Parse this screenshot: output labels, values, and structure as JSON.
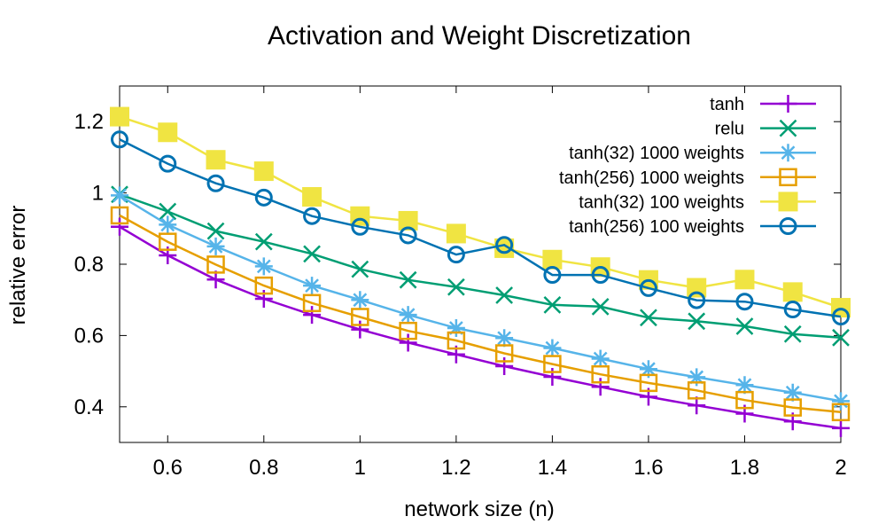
{
  "chart_data": {
    "type": "line",
    "title": "Activation and Weight Discretization",
    "xlabel": "network size (n)",
    "ylabel": "relative error",
    "xlim": [
      0.5,
      2.0
    ],
    "ylim": [
      0.3,
      1.3
    ],
    "xticks": [
      0.6,
      0.8,
      1,
      1.2,
      1.4,
      1.6,
      1.8,
      2
    ],
    "xtick_labels": [
      "0.6",
      "0.8",
      "1",
      "1.2",
      "1.4",
      "1.6",
      "1.8",
      "2"
    ],
    "yticks": [
      0.4,
      0.6,
      0.8,
      1,
      1.2
    ],
    "ytick_labels": [
      "0.4",
      "0.6",
      "0.8",
      "1",
      "1.2"
    ],
    "grid": false,
    "legend_position": "top-right",
    "x": [
      0.5,
      0.6,
      0.7,
      0.8,
      0.9,
      1.0,
      1.1,
      1.2,
      1.3,
      1.4,
      1.5,
      1.6,
      1.7,
      1.8,
      1.9,
      2.0
    ],
    "series": [
      {
        "name": "tanh",
        "color": "#9400d3",
        "marker": "plus",
        "values": [
          0.905,
          0.825,
          0.757,
          0.703,
          0.658,
          0.617,
          0.58,
          0.547,
          0.514,
          0.484,
          0.456,
          0.428,
          0.404,
          0.381,
          0.359,
          0.34
        ]
      },
      {
        "name": "relu",
        "color": "#009e73",
        "marker": "cross",
        "values": [
          0.996,
          0.948,
          0.893,
          0.863,
          0.829,
          0.786,
          0.756,
          0.736,
          0.713,
          0.686,
          0.681,
          0.65,
          0.64,
          0.626,
          0.604,
          0.594
        ]
      },
      {
        "name": "tanh(32) 1000 weights",
        "color": "#56b4e9",
        "marker": "star",
        "values": [
          0.993,
          0.911,
          0.85,
          0.794,
          0.74,
          0.7,
          0.658,
          0.621,
          0.593,
          0.565,
          0.535,
          0.506,
          0.483,
          0.461,
          0.44,
          0.416
        ]
      },
      {
        "name": "tanh(256) 1000 weights",
        "color": "#e69f00",
        "marker": "square-open",
        "values": [
          0.937,
          0.863,
          0.799,
          0.74,
          0.691,
          0.652,
          0.613,
          0.586,
          0.55,
          0.52,
          0.491,
          0.467,
          0.446,
          0.419,
          0.398,
          0.385
        ]
      },
      {
        "name": "tanh(32) 100 weights",
        "color": "#f0e442",
        "marker": "square-filled",
        "values": [
          1.214,
          1.17,
          1.093,
          1.061,
          0.989,
          0.935,
          0.922,
          0.886,
          0.845,
          0.813,
          0.792,
          0.756,
          0.734,
          0.757,
          0.722,
          0.678
        ]
      },
      {
        "name": "tanh(256) 100 weights",
        "color": "#0072b2",
        "marker": "circle-open",
        "values": [
          1.15,
          1.082,
          1.027,
          0.987,
          0.935,
          0.905,
          0.881,
          0.827,
          0.854,
          0.77,
          0.77,
          0.733,
          0.699,
          0.695,
          0.673,
          0.653
        ]
      }
    ]
  }
}
